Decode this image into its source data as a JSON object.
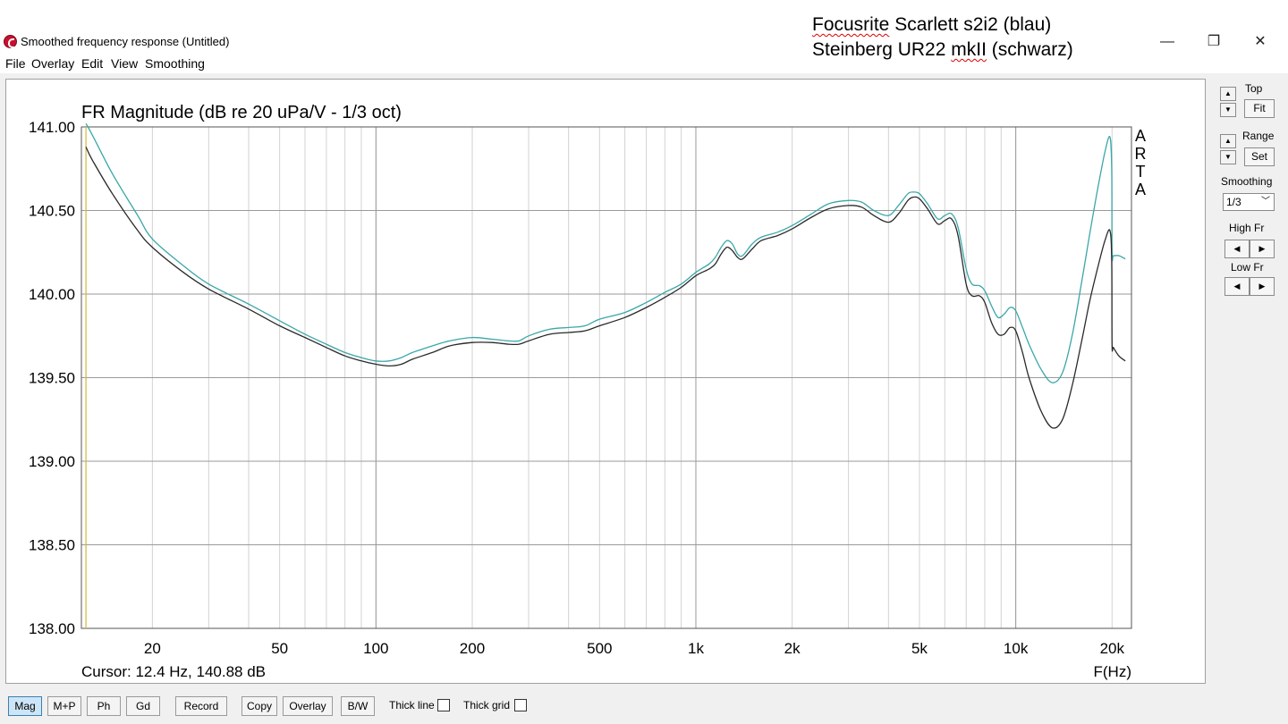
{
  "window": {
    "title": "Smoothed frequency response (Untitled)",
    "annotation_line1_word": "Focusrite",
    "annotation_line1_rest": " Scarlett s2i2 (blau)",
    "annotation_line2_start": "Steinberg UR22 ",
    "annotation_line2_word": "mkII",
    "annotation_line2_rest": " (schwarz)",
    "minimize_glyph": "—",
    "maximize_glyph": "❐",
    "close_glyph": "✕"
  },
  "menu": [
    "File",
    "Overlay",
    "Edit",
    "View",
    "Smoothing"
  ],
  "side_panel": {
    "top_label": "Top",
    "fit_label": "Fit",
    "range_label": "Range",
    "set_label": "Set",
    "smoothing_label": "Smoothing",
    "smoothing_value": "1/3",
    "high_fr_label": "High Fr",
    "low_fr_label": "Low Fr",
    "arrow_up": "▲",
    "arrow_down": "▼",
    "arrow_left": "◀",
    "arrow_right": "▶",
    "chevron": "﹀"
  },
  "bottom_bar": {
    "buttons": [
      "Mag",
      "M+P",
      "Ph",
      "Gd",
      "Record",
      "Copy",
      "Overlay",
      "B/W"
    ],
    "thick_line_label": "Thick line",
    "thick_grid_label": "Thick grid"
  },
  "chart_data": {
    "type": "line",
    "title": "FR Magnitude (dB re 20 uPa/V - 1/3 oct)",
    "xlabel": "F(Hz)",
    "xscale": "log",
    "xlim": [
      12,
      23000
    ],
    "ylim": [
      138,
      141
    ],
    "x_ticks": [
      20,
      50,
      100,
      200,
      500,
      1000,
      2000,
      5000,
      10000,
      20000
    ],
    "x_tick_labels": [
      "20",
      "50",
      "100",
      "200",
      "500",
      "1k",
      "2k",
      "5k",
      "10k",
      "20k"
    ],
    "y_ticks": [
      141,
      140.5,
      140,
      139.5,
      139,
      138.5,
      138
    ],
    "y_tick_labels": [
      "141.00",
      "140.50",
      "140.00",
      "139.50",
      "139.00",
      "138.50",
      "138.00"
    ],
    "grid": true,
    "watermark": "ARTA",
    "cursor_text": "Cursor: 12.4 Hz, 140.88 dB",
    "cursor_x": 12.4,
    "colors": {
      "series_blue": "#3aa7a9",
      "series_black": "#2a2a2a",
      "cursor": "#d4b83a",
      "grid": "#b4b4b4"
    },
    "series": [
      {
        "color": "series_blue",
        "x": [
          12.4,
          13,
          15,
          18,
          20,
          25,
          30,
          40,
          50,
          60,
          70,
          80,
          90,
          100,
          110,
          120,
          130,
          150,
          170,
          200,
          230,
          260,
          280,
          300,
          350,
          400,
          450,
          500,
          600,
          700,
          800,
          900,
          1000,
          1100,
          1150,
          1200,
          1250,
          1300,
          1350,
          1400,
          1500,
          1600,
          1800,
          2000,
          2300,
          2600,
          3000,
          3300,
          3600,
          4000,
          4300,
          4600,
          4800,
          5000,
          5300,
          5700,
          6000,
          6300,
          6600,
          7000,
          7300,
          7700,
          8000,
          8400,
          8800,
          9200,
          9600,
          10000,
          10500,
          11000,
          12000,
          13000,
          14000,
          15000,
          16000,
          17000,
          18000,
          19000,
          19700,
          19950,
          20000,
          20200,
          21000,
          22000
        ],
        "y": [
          141.02,
          140.95,
          140.72,
          140.47,
          140.33,
          140.17,
          140.06,
          139.94,
          139.84,
          139.76,
          139.7,
          139.65,
          139.62,
          139.6,
          139.6,
          139.62,
          139.65,
          139.69,
          139.72,
          139.74,
          139.73,
          139.72,
          139.72,
          139.75,
          139.79,
          139.8,
          139.81,
          139.85,
          139.89,
          139.95,
          140.01,
          140.06,
          140.13,
          140.18,
          140.22,
          140.28,
          140.32,
          140.3,
          140.24,
          140.23,
          140.3,
          140.34,
          140.37,
          140.41,
          140.48,
          140.54,
          140.56,
          140.55,
          140.5,
          140.47,
          140.53,
          140.6,
          140.61,
          140.6,
          140.54,
          140.45,
          140.47,
          140.48,
          140.4,
          140.15,
          140.06,
          140.05,
          140.02,
          139.93,
          139.86,
          139.88,
          139.92,
          139.9,
          139.8,
          139.7,
          139.55,
          139.47,
          139.53,
          139.75,
          140.05,
          140.35,
          140.62,
          140.85,
          140.94,
          140.75,
          140.24,
          140.23,
          140.23,
          140.21
        ]
      },
      {
        "color": "series_black",
        "x": [
          12.4,
          13,
          15,
          18,
          20,
          25,
          30,
          40,
          50,
          60,
          70,
          80,
          90,
          100,
          110,
          120,
          130,
          150,
          170,
          200,
          230,
          260,
          280,
          300,
          350,
          400,
          450,
          500,
          600,
          700,
          800,
          900,
          1000,
          1100,
          1150,
          1200,
          1250,
          1300,
          1350,
          1400,
          1500,
          1600,
          1800,
          2000,
          2300,
          2600,
          3000,
          3300,
          3600,
          4000,
          4300,
          4600,
          4800,
          5000,
          5300,
          5700,
          6000,
          6300,
          6600,
          7000,
          7300,
          7700,
          8000,
          8400,
          8800,
          9200,
          9600,
          10000,
          10500,
          11000,
          12000,
          13000,
          14000,
          15000,
          16000,
          17000,
          18000,
          19000,
          19700,
          19950,
          20000,
          20200,
          21000,
          22000
        ],
        "y": [
          140.88,
          140.8,
          140.6,
          140.38,
          140.28,
          140.13,
          140.03,
          139.91,
          139.81,
          139.74,
          139.68,
          139.63,
          139.6,
          139.58,
          139.57,
          139.58,
          139.61,
          139.65,
          139.69,
          139.71,
          139.71,
          139.7,
          139.7,
          139.72,
          139.76,
          139.77,
          139.78,
          139.81,
          139.86,
          139.92,
          139.98,
          140.04,
          140.11,
          140.15,
          140.18,
          140.24,
          140.28,
          140.26,
          140.22,
          140.21,
          140.27,
          140.32,
          140.35,
          140.39,
          140.46,
          140.51,
          140.53,
          140.52,
          140.47,
          140.43,
          140.48,
          140.56,
          140.58,
          140.57,
          140.51,
          140.42,
          140.44,
          140.45,
          140.35,
          140.06,
          139.99,
          139.99,
          139.95,
          139.83,
          139.76,
          139.76,
          139.8,
          139.78,
          139.65,
          139.5,
          139.3,
          139.2,
          139.25,
          139.45,
          139.7,
          139.95,
          140.15,
          140.32,
          140.38,
          140.2,
          139.7,
          139.68,
          139.63,
          139.6
        ]
      }
    ]
  }
}
